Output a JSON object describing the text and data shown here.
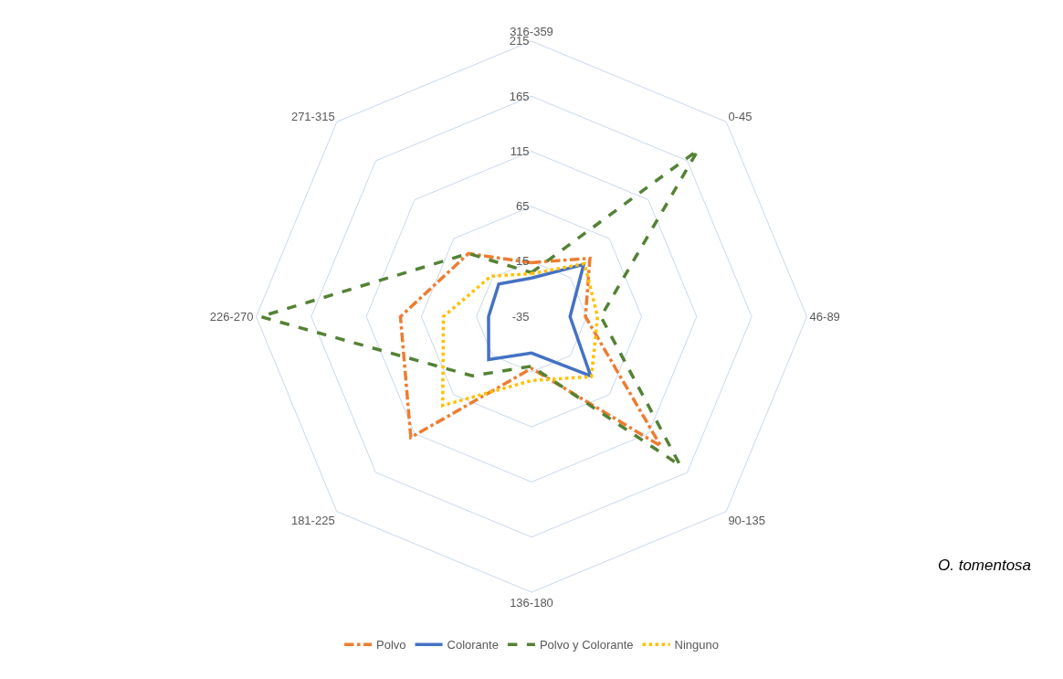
{
  "chart_data": {
    "type": "radar",
    "categories": [
      "316-359",
      "0-45",
      "46-89",
      "90-135",
      "136-180",
      "181-225",
      "226-270",
      "271-315"
    ],
    "series": [
      {
        "name": "Polvo",
        "color": "#ed7d31",
        "line_style": "dashdot",
        "values": [
          14,
          40,
          14,
          131,
          12,
          120,
          84,
          46
        ]
      },
      {
        "name": "Colorante",
        "color": "#4472c4",
        "line_style": "solid",
        "values": [
          0,
          32,
          0,
          41,
          -2,
          20,
          4,
          7
        ]
      },
      {
        "name": "Polvo y Colorante",
        "color": "#548235",
        "line_style": "dashed",
        "values": [
          5,
          179,
          28,
          156,
          10,
          41,
          211,
          46
        ]
      },
      {
        "name": "Ninguno",
        "color": "#ffc000",
        "line_style": "dotted",
        "values": [
          4,
          33,
          25,
          42,
          23,
          79,
          45,
          17
        ]
      }
    ],
    "ylim": [
      -35,
      215
    ],
    "yticks": [
      -35,
      15,
      65,
      115,
      165,
      215
    ],
    "grid": true,
    "legend": "bottom",
    "marker": "none",
    "annotations": [
      "O. tomentosa"
    ]
  }
}
